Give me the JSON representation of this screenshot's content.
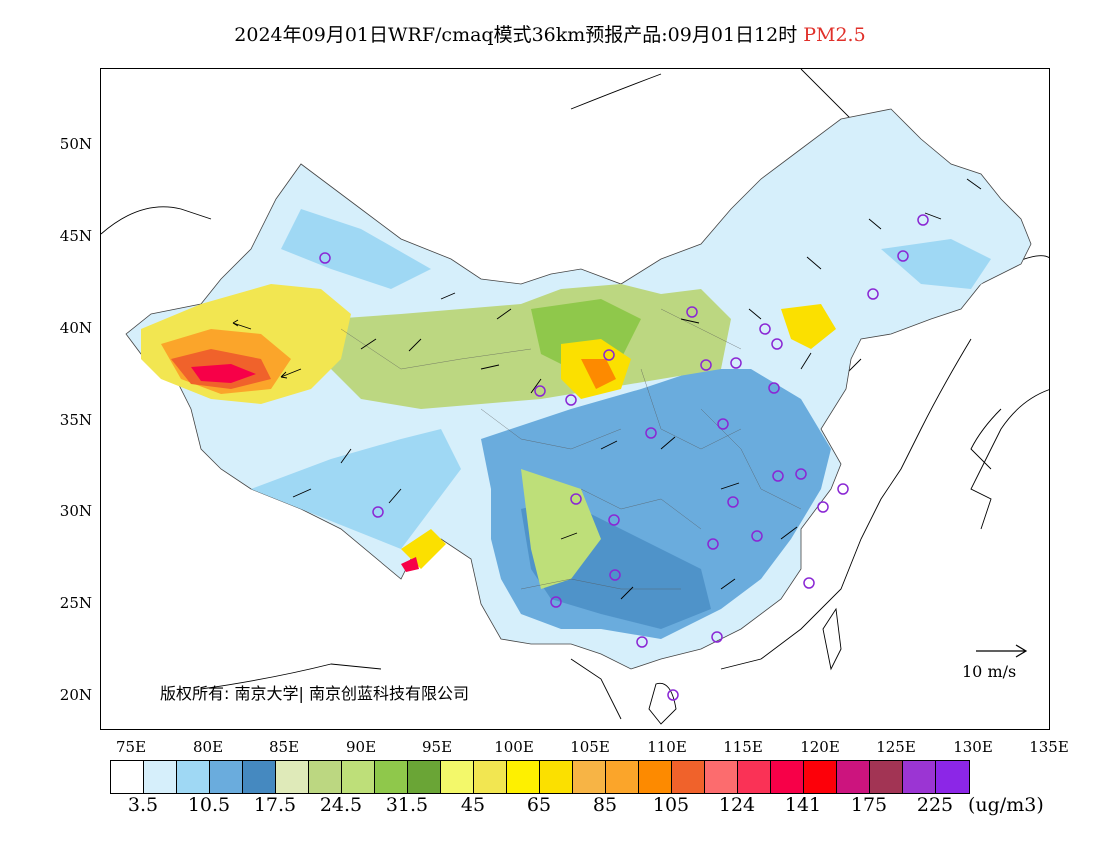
{
  "title": {
    "main": "2024年09月01日WRF/cmaq模式36km预报产品:09月01日12时",
    "variable": "PM2.5"
  },
  "axes": {
    "lat_labels": [
      "50N",
      "45N",
      "40N",
      "35N",
      "30N",
      "25N",
      "20N"
    ],
    "lon_labels": [
      "75E",
      "80E",
      "85E",
      "90E",
      "95E",
      "100E",
      "105E",
      "110E",
      "115E",
      "120E",
      "125E",
      "130E",
      "135E"
    ]
  },
  "colorbar": {
    "colors": [
      "#ffffff",
      "#d6effb",
      "#9fd8f4",
      "#6aacdd",
      "#4589c0",
      "#dfeab9",
      "#bcd781",
      "#bedf79",
      "#8fc84b",
      "#6aa536",
      "#f3f86a",
      "#f2e651",
      "#fef000",
      "#fbe000",
      "#f7b445",
      "#fba52a",
      "#fd8a00",
      "#f0622b",
      "#fc6c6e",
      "#fa3256",
      "#f70048",
      "#fd0009",
      "#cc147e",
      "#a23454",
      "#9b35d3",
      "#8c26e7"
    ],
    "labels": [
      "3.5",
      "10.5",
      "17.5",
      "24.5",
      "31.5",
      "45",
      "65",
      "85",
      "105",
      "124",
      "141",
      "175",
      "225"
    ],
    "unit": "(ug/m3)"
  },
  "annotations": {
    "copyright": "版权所有: 南京大学| 南京创蓝科技有限公司",
    "wind_scale_label": "10 m/s"
  },
  "map": {
    "projection": "lat-lon",
    "lon_range": [
      73,
      135
    ],
    "lat_range": [
      18,
      54
    ]
  }
}
